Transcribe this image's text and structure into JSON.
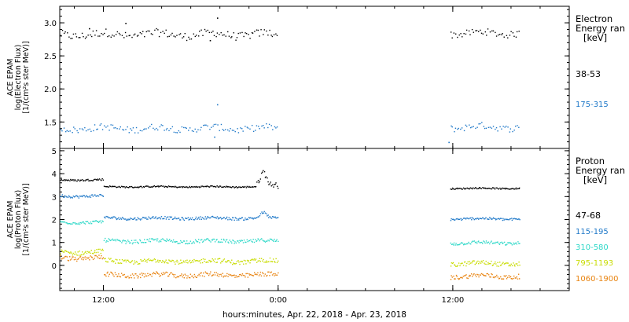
{
  "chart_data": [
    {
      "type": "scatter",
      "panel": "electron",
      "ylabel": [
        "ACE EPAM",
        "log(Electron Flux)",
        "[1/(cm²s ster MeV)]"
      ],
      "legend_title": [
        "Electron",
        "Energy ran",
        "[keV]"
      ],
      "ylim": [
        1.1,
        3.25
      ],
      "yticks": [
        1.5,
        2.0,
        2.5,
        3.0
      ],
      "yticklabels": [
        "1.5",
        "2.0",
        "2.5",
        "3.0"
      ],
      "xlim": [
        9,
        44
      ],
      "x_unit": "hours since 2018-04-22 00:00",
      "series": [
        {
          "name": "38-53",
          "color": "#000000",
          "segments": [
            {
              "x_start": 9.0,
              "x_end": 24.0,
              "level": 2.83,
              "noise": 0.06
            },
            {
              "x_start": 35.8,
              "x_end": 40.6,
              "level": 2.85,
              "noise": 0.05
            }
          ],
          "outliers": [
            [
              11.0,
              2.92
            ],
            [
              13.5,
              3.0
            ],
            [
              19.8,
              3.08
            ],
            [
              19.3,
              2.74
            ]
          ]
        },
        {
          "name": "175-315",
          "color": "#1e78c8",
          "segments": [
            {
              "x_start": 9.0,
              "x_end": 24.0,
              "level": 1.41,
              "noise": 0.05
            },
            {
              "x_start": 35.8,
              "x_end": 40.6,
              "level": 1.43,
              "noise": 0.05
            }
          ],
          "outliers": [
            [
              19.8,
              1.77
            ],
            [
              19.6,
              1.28
            ],
            [
              35.7,
              1.2
            ]
          ]
        }
      ]
    },
    {
      "type": "scatter",
      "panel": "proton",
      "ylabel": [
        "ACE EPAM",
        "log(Proton Flux)",
        "[1/(cm²s ster MeV)]"
      ],
      "legend_title": [
        "Proton",
        "Energy ran",
        "[keV]"
      ],
      "ylim": [
        -1.1,
        5.1
      ],
      "yticks": [
        0,
        1,
        2,
        3,
        4,
        5
      ],
      "yticklabels": [
        "0",
        "1",
        "2",
        "3",
        "4",
        "5"
      ],
      "xlim": [
        9,
        44
      ],
      "x_unit": "hours since 2018-04-22 00:00",
      "series": [
        {
          "name": "47-68",
          "color": "#000000",
          "segments": [
            {
              "x_start": 9.0,
              "x_end": 12.0,
              "level": 3.75,
              "noise": 0.04
            },
            {
              "x_start": 12.0,
              "x_end": 22.5,
              "level": 3.45,
              "noise": 0.03
            },
            {
              "x_start": 22.5,
              "x_end": 24.0,
              "level": 3.5,
              "noise": 0.12
            },
            {
              "x_start": 35.8,
              "x_end": 40.6,
              "level": 3.38,
              "noise": 0.03
            }
          ],
          "bumps": [
            [
              22.5,
              23.4,
              4.15
            ]
          ]
        },
        {
          "name": "115-195",
          "color": "#1e78c8",
          "segments": [
            {
              "x_start": 9.0,
              "x_end": 12.0,
              "level": 3.05,
              "noise": 0.06
            },
            {
              "x_start": 12.0,
              "x_end": 24.0,
              "level": 2.08,
              "noise": 0.06
            },
            {
              "x_start": 35.8,
              "x_end": 40.6,
              "level": 2.05,
              "noise": 0.05
            }
          ],
          "bumps": [
            [
              22.5,
              23.4,
              2.35
            ]
          ]
        },
        {
          "name": "310-580",
          "color": "#2fd8c8",
          "segments": [
            {
              "x_start": 9.0,
              "x_end": 12.0,
              "level": 1.9,
              "noise": 0.06
            },
            {
              "x_start": 12.0,
              "x_end": 24.0,
              "level": 1.08,
              "noise": 0.08
            },
            {
              "x_start": 35.8,
              "x_end": 40.6,
              "level": 1.0,
              "noise": 0.07
            }
          ]
        },
        {
          "name": "795-1193",
          "color": "#c8dc00",
          "segments": [
            {
              "x_start": 9.0,
              "x_end": 12.0,
              "level": 0.6,
              "noise": 0.1
            },
            {
              "x_start": 12.0,
              "x_end": 24.0,
              "level": 0.2,
              "noise": 0.1
            },
            {
              "x_start": 35.8,
              "x_end": 40.6,
              "level": 0.1,
              "noise": 0.1
            }
          ]
        },
        {
          "name": "1060-1900",
          "color": "#e8830f",
          "segments": [
            {
              "x_start": 9.0,
              "x_end": 12.0,
              "level": 0.35,
              "noise": 0.1
            },
            {
              "x_start": 12.0,
              "x_end": 24.0,
              "level": -0.4,
              "noise": 0.1
            },
            {
              "x_start": 35.8,
              "x_end": 40.6,
              "level": -0.45,
              "noise": 0.1
            }
          ]
        }
      ]
    }
  ],
  "x_axis": {
    "title": "hours:minutes, Apr. 22, 2018 - Apr. 23, 2018",
    "ticks": [
      {
        "x": 12,
        "label": "12:00"
      },
      {
        "x": 24,
        "label": "0:00"
      },
      {
        "x": 36,
        "label": "12:00"
      }
    ],
    "minor_step_hours": 2
  }
}
